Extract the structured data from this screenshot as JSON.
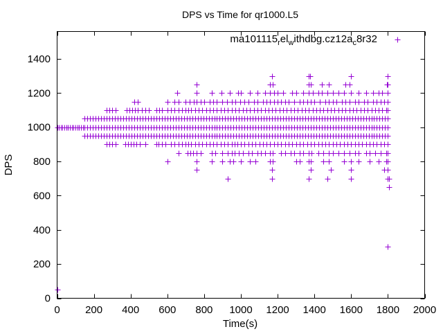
{
  "chart_data": {
    "type": "scatter",
    "title": "DPS vs Time for qr1000.L5",
    "xlabel": "Time(s)",
    "ylabel": "DPS",
    "xlim": [
      0,
      2000
    ],
    "ylim": [
      0,
      1560
    ],
    "xticks": [
      0,
      200,
      400,
      600,
      800,
      1000,
      1200,
      1400,
      1600,
      1800,
      2000
    ],
    "yticks": [
      0,
      200,
      400,
      600,
      800,
      1000,
      1200,
      1400
    ],
    "grid": false,
    "legend_position": "top-right",
    "marker": "plus",
    "series": [
      {
        "name": "ma101115_rel_withdbg.cz12a_c8r32",
        "color": "#9400d3",
        "levels": [
          {
            "y": 50,
            "x": [
              0
            ]
          },
          {
            "y": 300,
            "x": [
              1800
            ]
          },
          {
            "y": 650,
            "x": [
              1805
            ]
          },
          {
            "y": 700,
            "x": [
              930,
              1170,
              1370,
              1470,
              1600,
              1800,
              1805
            ]
          },
          {
            "y": 750,
            "x": [
              760,
              1170,
              1380,
              1490,
              1600,
              1780,
              1800
            ]
          },
          {
            "y": 800,
            "x": [
              600,
              760,
              840,
              900,
              940,
              960,
              1000,
              1050,
              1080,
              1160,
              1175,
              1300,
              1320,
              1370,
              1380,
              1450,
              1480,
              1560,
              1600,
              1640,
              1700,
              1750,
              1790,
              1800
            ]
          },
          {
            "y": 850,
            "x": [
              660,
              710,
              725,
              740,
              760,
              780,
              840,
              860,
              900,
              930,
              950,
              965,
              990,
              1010,
              1040,
              1060,
              1090,
              1110,
              1130,
              1160,
              1175,
              1220,
              1240,
              1270,
              1290,
              1320,
              1340,
              1370,
              1385,
              1420,
              1450,
              1480,
              1500,
              1530,
              1560,
              1590,
              1620,
              1640,
              1680,
              1700,
              1730,
              1760,
              1790,
              1800
            ]
          },
          {
            "y": 900,
            "x": [
              270,
              285,
              300,
              320,
              370,
              385,
              400,
              415,
              430,
              450,
              480,
              540,
              550,
              570,
              590,
              620,
              640,
              660,
              680,
              700,
              715,
              730,
              750,
              770,
              790,
              810,
              830,
              850,
              870,
              890,
              910,
              930,
              950,
              965,
              980,
              1000,
              1020,
              1040,
              1060,
              1080,
              1100,
              1120,
              1140,
              1160,
              1180,
              1200,
              1220,
              1240,
              1260,
              1280,
              1300,
              1320,
              1340,
              1360,
              1380,
              1400,
              1420,
              1440,
              1460,
              1480,
              1500,
              1520,
              1540,
              1560,
              1580,
              1600,
              1620,
              1640,
              1660,
              1680,
              1700,
              1720,
              1740,
              1760,
              1780,
              1800
            ]
          },
          {
            "y": 950,
            "x": [
              150,
              165,
              180,
              195,
              210,
              225,
              240,
              255,
              270,
              285,
              300,
              315,
              330,
              345,
              360,
              375,
              390,
              405,
              420,
              435,
              450,
              465,
              480,
              495,
              510,
              525,
              540,
              555,
              570,
              585,
              600,
              615,
              630,
              645,
              660,
              675,
              690,
              705,
              720,
              735,
              750,
              765,
              780,
              795,
              810,
              825,
              840,
              855,
              870,
              885,
              900,
              915,
              930,
              945,
              960,
              975,
              990,
              1005,
              1020,
              1035,
              1050,
              1065,
              1080,
              1095,
              1110,
              1125,
              1140,
              1155,
              1170,
              1185,
              1200,
              1215,
              1230,
              1245,
              1260,
              1275,
              1290,
              1305,
              1320,
              1335,
              1350,
              1365,
              1380,
              1395,
              1410,
              1425,
              1440,
              1455,
              1470,
              1485,
              1500,
              1515,
              1530,
              1545,
              1560,
              1575,
              1590,
              1605,
              1620,
              1635,
              1650,
              1665,
              1680,
              1695,
              1710,
              1725,
              1740,
              1755,
              1770,
              1785,
              1800
            ]
          },
          {
            "y": 1000,
            "x": [
              0,
              10,
              20,
              30,
              40,
              50,
              60,
              70,
              80,
              90,
              100,
              110,
              120,
              130,
              140,
              150,
              165,
              180,
              195,
              210,
              225,
              240,
              255,
              270,
              285,
              300,
              315,
              330,
              345,
              360,
              375,
              390,
              405,
              420,
              435,
              450,
              465,
              480,
              495,
              510,
              525,
              540,
              555,
              570,
              585,
              600,
              615,
              630,
              645,
              660,
              675,
              690,
              705,
              720,
              735,
              750,
              765,
              780,
              795,
              810,
              825,
              840,
              855,
              870,
              885,
              900,
              915,
              930,
              945,
              960,
              975,
              990,
              1005,
              1020,
              1035,
              1050,
              1065,
              1080,
              1095,
              1110,
              1125,
              1140,
              1155,
              1170,
              1185,
              1200,
              1215,
              1230,
              1245,
              1260,
              1275,
              1290,
              1305,
              1320,
              1335,
              1350,
              1365,
              1380,
              1395,
              1410,
              1425,
              1440,
              1455,
              1470,
              1485,
              1500,
              1515,
              1530,
              1545,
              1560,
              1575,
              1590,
              1605,
              1620,
              1635,
              1650,
              1665,
              1680,
              1695,
              1710,
              1725,
              1740,
              1755,
              1770,
              1785,
              1800
            ]
          },
          {
            "y": 1050,
            "x": [
              150,
              165,
              180,
              195,
              210,
              225,
              240,
              255,
              270,
              285,
              300,
              315,
              330,
              345,
              360,
              375,
              390,
              405,
              420,
              435,
              450,
              465,
              480,
              495,
              510,
              525,
              540,
              555,
              570,
              585,
              600,
              615,
              630,
              645,
              660,
              675,
              690,
              705,
              720,
              735,
              750,
              765,
              780,
              795,
              810,
              825,
              840,
              855,
              870,
              885,
              900,
              915,
              930,
              945,
              960,
              975,
              990,
              1005,
              1020,
              1035,
              1050,
              1065,
              1080,
              1095,
              1110,
              1125,
              1140,
              1155,
              1170,
              1185,
              1200,
              1215,
              1230,
              1245,
              1260,
              1275,
              1290,
              1305,
              1320,
              1335,
              1350,
              1365,
              1380,
              1395,
              1410,
              1425,
              1440,
              1455,
              1470,
              1485,
              1500,
              1515,
              1530,
              1545,
              1560,
              1575,
              1590,
              1605,
              1620,
              1635,
              1650,
              1665,
              1680,
              1695,
              1710,
              1725,
              1740,
              1755,
              1770,
              1785,
              1800
            ]
          },
          {
            "y": 1100,
            "x": [
              270,
              285,
              300,
              320,
              380,
              395,
              410,
              425,
              440,
              460,
              480,
              500,
              540,
              555,
              570,
              600,
              620,
              640,
              660,
              680,
              700,
              715,
              730,
              750,
              770,
              790,
              810,
              830,
              850,
              870,
              890,
              910,
              930,
              950,
              970,
              990,
              1010,
              1030,
              1050,
              1070,
              1090,
              1110,
              1130,
              1150,
              1170,
              1190,
              1210,
              1230,
              1250,
              1270,
              1290,
              1310,
              1330,
              1350,
              1370,
              1390,
              1410,
              1430,
              1450,
              1470,
              1490,
              1510,
              1530,
              1550,
              1570,
              1590,
              1610,
              1630,
              1650,
              1670,
              1690,
              1710,
              1730,
              1750,
              1770,
              1790,
              1800
            ]
          },
          {
            "y": 1150,
            "x": [
              420,
              440,
              600,
              640,
              660,
              700,
              720,
              745,
              760,
              780,
              800,
              830,
              850,
              870,
              900,
              925,
              950,
              970,
              995,
              1020,
              1040,
              1070,
              1090,
              1120,
              1140,
              1160,
              1180,
              1200,
              1220,
              1240,
              1260,
              1290,
              1320,
              1340,
              1360,
              1380,
              1400,
              1430,
              1460,
              1480,
              1500,
              1520,
              1550,
              1570,
              1590,
              1620,
              1640,
              1670,
              1690,
              1720,
              1740,
              1760,
              1780,
              1800
            ]
          },
          {
            "y": 1200,
            "x": [
              655,
              760,
              840,
              895,
              940,
              985,
              1000,
              1050,
              1090,
              1130,
              1160,
              1180,
              1200,
              1230,
              1280,
              1300,
              1340,
              1370,
              1390,
              1420,
              1440,
              1470,
              1500,
              1530,
              1560,
              1600,
              1640,
              1680,
              1720,
              1750,
              1770,
              1800
            ]
          },
          {
            "y": 1250,
            "x": [
              760,
              1160,
              1175,
              1370,
              1380,
              1440,
              1480,
              1570,
              1590,
              1795,
              1800
            ]
          },
          {
            "y": 1300,
            "x": [
              1170,
              1370,
              1375,
              1600,
              1800
            ]
          }
        ]
      }
    ]
  }
}
